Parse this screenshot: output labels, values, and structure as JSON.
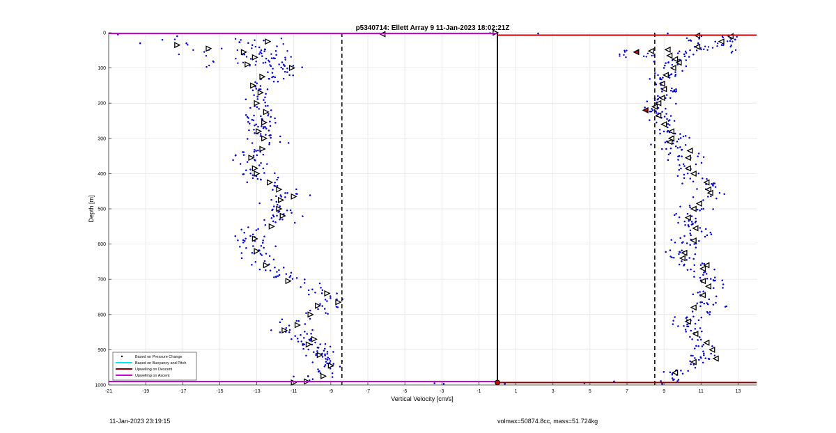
{
  "chart_data": {
    "type": "scatter",
    "title": "p5340714: Ellett Array 9 11-Jan-2023 18:02:21Z",
    "xlabel": "Vertical Velocity [cm/s]",
    "ylabel": "Depth [m]",
    "xlim": [
      -21,
      14
    ],
    "ylim": [
      0,
      1000
    ],
    "y_reversed": true,
    "grid": true,
    "x_ticks": [
      -21,
      -19,
      -17,
      -15,
      -13,
      -11,
      -9,
      -7,
      -5,
      -3,
      -1,
      1,
      3,
      5,
      7,
      9,
      11,
      13
    ],
    "y_ticks": [
      0,
      100,
      200,
      300,
      400,
      500,
      600,
      700,
      800,
      900,
      1000
    ],
    "legend_position": "bottom-left",
    "legend": [
      {
        "label": "Based on Pressure Change",
        "color": "#000000",
        "kind": "dot"
      },
      {
        "label": "Based on Buoyancy and Pitch",
        "color": "#00e5ee",
        "kind": "line"
      },
      {
        "label": "Upwelling on Descent",
        "color": "#8b0000",
        "kind": "line"
      },
      {
        "label": "Upwelling on Ascent",
        "color": "#cc00cc",
        "kind": "line"
      }
    ],
    "descent_profile": {
      "depth": [
        20,
        40,
        60,
        80,
        100,
        120,
        140,
        160,
        180,
        200,
        220,
        240,
        260,
        280,
        300,
        320,
        340,
        360,
        380,
        400,
        420,
        440,
        460,
        480,
        500,
        520,
        540,
        560,
        580,
        600,
        620,
        640,
        660,
        680,
        700,
        720,
        740,
        760,
        780,
        800,
        820,
        840,
        860,
        880,
        900,
        920,
        940,
        960,
        980
      ],
      "velocity": [
        -13.5,
        -13.2,
        -12.8,
        -12.2,
        -11.2,
        -12.0,
        -12.4,
        -12.6,
        -12.6,
        -13.1,
        -12.7,
        -12.9,
        -12.6,
        -12.8,
        -12.5,
        -12.6,
        -12.9,
        -13.4,
        -13.2,
        -13.2,
        -12.6,
        -11.9,
        -11.3,
        -11.6,
        -11.8,
        -11.6,
        -12.1,
        -12.9,
        -13.3,
        -13.2,
        -13.1,
        -12.6,
        -12.4,
        -12.0,
        -11.2,
        -10.4,
        -9.3,
        -8.8,
        -9.5,
        -10.0,
        -10.8,
        -11.4,
        -10.4,
        -9.9,
        -9.8,
        -9.6,
        -9.0,
        -9.3,
        -10.2
      ],
      "spread": 0.55
    },
    "ascent_profile": {
      "depth": [
        20,
        40,
        60,
        80,
        100,
        120,
        140,
        160,
        180,
        200,
        220,
        240,
        260,
        280,
        300,
        320,
        340,
        360,
        380,
        400,
        420,
        440,
        460,
        480,
        500,
        520,
        540,
        560,
        580,
        600,
        620,
        640,
        660,
        680,
        700,
        720,
        740,
        760,
        780,
        800,
        820,
        840,
        860,
        880,
        900,
        920,
        940,
        960,
        980
      ],
      "velocity": [
        12.2,
        11.3,
        9.7,
        9.6,
        9.4,
        9.2,
        9.0,
        9.2,
        9.0,
        8.9,
        8.6,
        8.8,
        9.2,
        9.4,
        9.5,
        9.4,
        10.1,
        10.3,
        10.2,
        10.4,
        10.9,
        11.2,
        11.4,
        11.1,
        10.6,
        10.3,
        10.6,
        10.8,
        10.5,
        10.1,
        9.9,
        9.9,
        10.4,
        11.1,
        11.4,
        11.5,
        11.3,
        11.0,
        11.3,
        10.8,
        10.1,
        10.3,
        10.6,
        11.1,
        11.4,
        11.2,
        10.4,
        9.6,
        9.3
      ],
      "spread": 0.5
    },
    "descent_markers": {
      "points": [
        [
          -12.4,
          25
        ],
        [
          -17.3,
          35
        ],
        [
          -15.6,
          45
        ],
        [
          -13.7,
          55
        ],
        [
          -13.1,
          70
        ],
        [
          -13.5,
          90
        ],
        [
          -11.1,
          100
        ],
        [
          -12.7,
          125
        ],
        [
          -13.2,
          150
        ],
        [
          -12.8,
          170
        ],
        [
          -13.0,
          200
        ],
        [
          -12.5,
          225
        ],
        [
          -12.6,
          255
        ],
        [
          -12.9,
          280
        ],
        [
          -12.6,
          300
        ],
        [
          -12.7,
          330
        ],
        [
          -13.3,
          355
        ],
        [
          -13.1,
          385
        ],
        [
          -13.0,
          400
        ],
        [
          -12.3,
          425
        ],
        [
          -11.8,
          445
        ],
        [
          -11.0,
          465
        ],
        [
          -11.7,
          475
        ],
        [
          -11.8,
          500
        ],
        [
          -11.6,
          520
        ],
        [
          -12.2,
          550
        ],
        [
          -13.1,
          585
        ],
        [
          -13.0,
          620
        ],
        [
          -12.5,
          660
        ],
        [
          -11.3,
          705
        ],
        [
          -9.2,
          740
        ],
        [
          -8.6,
          765
        ],
        [
          -9.7,
          775
        ],
        [
          -10.1,
          800
        ],
        [
          -10.8,
          830
        ],
        [
          -11.5,
          845
        ],
        [
          -9.9,
          870
        ],
        [
          -10.2,
          885
        ],
        [
          -9.6,
          915
        ],
        [
          -9.0,
          945
        ],
        [
          -9.4,
          975
        ],
        [
          -10.3,
          990
        ],
        [
          -11.0,
          993
        ]
      ],
      "triangles_left": [
        [
          -6.2,
          4
        ]
      ],
      "triangles_right_top": [
        [
          -0.1,
          0
        ]
      ]
    },
    "ascent_markers": {
      "points": [
        [
          12.6,
          10
        ],
        [
          12.1,
          25
        ],
        [
          10.8,
          40
        ],
        [
          9.2,
          48
        ],
        [
          8.3,
          52
        ],
        [
          9.3,
          65
        ],
        [
          9.6,
          75
        ],
        [
          9.8,
          85
        ],
        [
          9.5,
          100
        ],
        [
          9.1,
          120
        ],
        [
          8.9,
          145
        ],
        [
          9.0,
          160
        ],
        [
          8.9,
          185
        ],
        [
          8.7,
          200
        ],
        [
          8.5,
          210
        ],
        [
          8.7,
          235
        ],
        [
          9.0,
          260
        ],
        [
          9.4,
          280
        ],
        [
          9.4,
          300
        ],
        [
          9.3,
          310
        ],
        [
          10.4,
          335
        ],
        [
          10.3,
          355
        ],
        [
          10.3,
          385
        ],
        [
          10.6,
          400
        ],
        [
          11.3,
          425
        ],
        [
          11.4,
          445
        ],
        [
          11.5,
          455
        ],
        [
          10.9,
          485
        ],
        [
          10.6,
          500
        ],
        [
          10.3,
          525
        ],
        [
          10.7,
          555
        ],
        [
          10.6,
          590
        ],
        [
          10.1,
          625
        ],
        [
          10.0,
          640
        ],
        [
          11.3,
          660
        ],
        [
          11.1,
          670
        ],
        [
          11.1,
          705
        ],
        [
          11.4,
          720
        ],
        [
          11.1,
          745
        ],
        [
          10.6,
          780
        ],
        [
          10.3,
          820
        ],
        [
          10.7,
          855
        ],
        [
          11.3,
          880
        ],
        [
          11.6,
          900
        ],
        [
          11.8,
          925
        ],
        [
          10.6,
          935
        ],
        [
          9.6,
          965
        ]
      ],
      "triangles_left": [
        [
          10.8,
          8
        ]
      ],
      "descent_red_points": [
        [
          7.5,
          55
        ],
        [
          8.0,
          220
        ]
      ]
    },
    "scatter_outliers": [
      [
        -20.5,
        5
      ],
      [
        -18.1,
        20
      ],
      [
        -17.3,
        10
      ],
      [
        -16.8,
        30
      ],
      [
        -19.3,
        30
      ],
      [
        -0.4,
        1
      ],
      [
        2.2,
        2
      ],
      [
        9.2,
        2
      ],
      [
        0.4,
        997
      ],
      [
        4.7,
        995
      ],
      [
        6.3,
        990
      ],
      [
        -2.9,
        997
      ],
      [
        -3.4,
        995
      ],
      [
        8.9,
        997
      ]
    ],
    "reference_lines": {
      "dashed_x": [
        -8.4,
        8.5
      ],
      "solid_x": [
        0
      ],
      "ascent_line_depth_left": 2,
      "descent_line_depth_right": 7,
      "ascent_line_depth_bottom": 990,
      "descent_line_depth_bottom": 993
    },
    "colors": {
      "points": "#0000cc",
      "ascent_line": "#cc00cc",
      "descent_line": "#cc0000",
      "descent_line_dark": "#8b0000",
      "buoyancy_line": "#00e5ee",
      "grid": "#e5e5e5"
    }
  },
  "footer": {
    "timestamp": "11-Jan-2023 23:19:15",
    "stats": "volmax=50874.8cc, mass=51.724kg"
  }
}
